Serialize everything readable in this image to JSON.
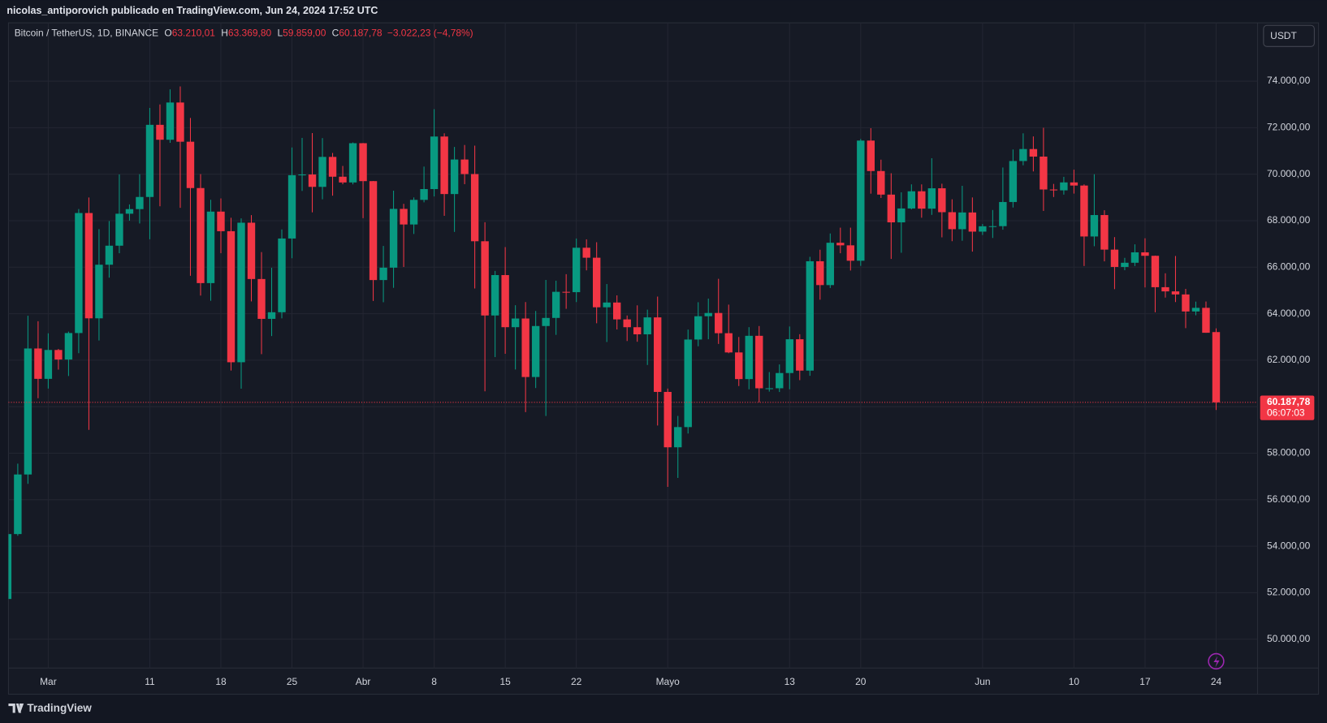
{
  "header": {
    "byline": "nicolas_antiporovich publicado en TradingView.com, Jun 24, 2024 17:52 UTC"
  },
  "legend": {
    "symbol": "Bitcoin / TetherUS, 1D, BINANCE",
    "fields": [
      {
        "key": "O",
        "text": "63.210,01"
      },
      {
        "key": "H",
        "text": "63.369,80"
      },
      {
        "key": "L",
        "text": "59.859,00"
      },
      {
        "key": "C",
        "text": "60.187,78"
      }
    ],
    "change": "−3.022,23 (−4,78%)"
  },
  "currency": "USDT",
  "footer": {
    "brand": "TradingView"
  },
  "chart_data": {
    "type": "candlestick",
    "x": [
      "2024-02-26",
      "2024-02-27",
      "2024-02-28",
      "2024-02-29",
      "2024-03-01",
      "2024-03-02",
      "2024-03-03",
      "2024-03-04",
      "2024-03-05",
      "2024-03-06",
      "2024-03-07",
      "2024-03-08",
      "2024-03-09",
      "2024-03-10",
      "2024-03-11",
      "2024-03-12",
      "2024-03-13",
      "2024-03-14",
      "2024-03-15",
      "2024-03-16",
      "2024-03-17",
      "2024-03-18",
      "2024-03-19",
      "2024-03-20",
      "2024-03-21",
      "2024-03-22",
      "2024-03-23",
      "2024-03-24",
      "2024-03-25",
      "2024-03-26",
      "2024-03-27",
      "2024-03-28",
      "2024-03-29",
      "2024-03-30",
      "2024-03-31",
      "2024-04-01",
      "2024-04-02",
      "2024-04-03",
      "2024-04-04",
      "2024-04-05",
      "2024-04-06",
      "2024-04-07",
      "2024-04-08",
      "2024-04-09",
      "2024-04-10",
      "2024-04-11",
      "2024-04-12",
      "2024-04-13",
      "2024-04-14",
      "2024-04-15",
      "2024-04-16",
      "2024-04-17",
      "2024-04-18",
      "2024-04-19",
      "2024-04-20",
      "2024-04-21",
      "2024-04-22",
      "2024-04-23",
      "2024-04-24",
      "2024-04-25",
      "2024-04-26",
      "2024-04-27",
      "2024-04-28",
      "2024-04-29",
      "2024-04-30",
      "2024-05-01",
      "2024-05-02",
      "2024-05-03",
      "2024-05-04",
      "2024-05-05",
      "2024-05-06",
      "2024-05-07",
      "2024-05-08",
      "2024-05-09",
      "2024-05-10",
      "2024-05-11",
      "2024-05-12",
      "2024-05-13",
      "2024-05-14",
      "2024-05-15",
      "2024-05-16",
      "2024-05-17",
      "2024-05-18",
      "2024-05-19",
      "2024-05-20",
      "2024-05-21",
      "2024-05-22",
      "2024-05-23",
      "2024-05-24",
      "2024-05-25",
      "2024-05-26",
      "2024-05-27",
      "2024-05-28",
      "2024-05-29",
      "2024-05-30",
      "2024-05-31",
      "2024-06-01",
      "2024-06-02",
      "2024-06-03",
      "2024-06-04",
      "2024-06-05",
      "2024-06-06",
      "2024-06-07",
      "2024-06-08",
      "2024-06-09",
      "2024-06-10",
      "2024-06-11",
      "2024-06-12",
      "2024-06-13",
      "2024-06-14",
      "2024-06-15",
      "2024-06-16",
      "2024-06-17",
      "2024-06-18",
      "2024-06-19",
      "2024-06-20",
      "2024-06-21",
      "2024-06-22",
      "2024-06-23",
      "2024-06-24"
    ],
    "open": [
      51730,
      54522,
      57085,
      62504,
      61198,
      62440,
      62029,
      63168,
      68330,
      63801,
      66106,
      66925,
      68300,
      68498,
      69020,
      72123,
      71482,
      73083,
      71397,
      69404,
      65316,
      68391,
      67548,
      61912,
      67914,
      65491,
      63778,
      64062,
      67234,
      69958,
      69987,
      69455,
      70744,
      69892,
      69645,
      71333,
      69702,
      65447,
      65980,
      68508,
      67837,
      68896,
      69360,
      71620,
      69146,
      70631,
      70006,
      67116,
      63924,
      65661,
      63420,
      63793,
      61277,
      63470,
      63818,
      64941,
      64926,
      66837,
      66408,
      64276,
      64481,
      63755,
      63419,
      63113,
      63841,
      60636,
      58254,
      59123,
      62889,
      63891,
      64031,
      63161,
      62334,
      61187,
      63049,
      60792,
      60793,
      61448,
      62901,
      61552,
      66256,
      65231,
      67051,
      66940,
      66278,
      71446,
      70136,
      69122,
      67929,
      68526,
      69265,
      68518,
      69394,
      68366,
      67635,
      68354,
      67530,
      67760,
      67765,
      68804,
      70567,
      71082,
      70757,
      69342,
      69305,
      69647,
      69512,
      67321,
      68243,
      66756,
      66011,
      66191,
      66639,
      66490,
      65140,
      64960,
      64828,
      64096,
      64252,
      63210.01
    ],
    "high": [
      54938,
      57550,
      63913,
      63676,
      63155,
      62486,
      63230,
      68500,
      69000,
      67637,
      67985,
      69990,
      68700,
      70000,
      72850,
      73000,
      73650,
      73777,
      72420,
      70000,
      68900,
      68958,
      68124,
      68100,
      68240,
      66650,
      65976,
      67624,
      71150,
      71561,
      71769,
      71552,
      70913,
      70355,
      71366,
      71342,
      69708,
      66914,
      69291,
      68725,
      69000,
      70327,
      72797,
      71758,
      71172,
      71256,
      71227,
      67932,
      65840,
      66867,
      64365,
      64499,
      64117,
      65450,
      65419,
      65700,
      67233,
      67199,
      67075,
      65275,
      64789,
      63923,
      64359,
      64174,
      64734,
      60780,
      59602,
      63320,
      64494,
      64650,
      65500,
      64390,
      62999,
      63421,
      63469,
      61490,
      61818,
      63450,
      63118,
      66444,
      66752,
      67451,
      67700,
      67700,
      71515,
      71979,
      70625,
      70041,
      69220,
      69563,
      69562,
      70687,
      69590,
      68920,
      69500,
      69000,
      67857,
      68460,
      70288,
      71063,
      71758,
      71625,
      71997,
      69582,
      69887,
      70195,
      69562,
      69999,
      68449,
      67294,
      66402,
      66984,
      67244,
      66500,
      65738,
      66482,
      65067,
      64520,
      64524,
      63369.8
    ],
    "low": [
      50901,
      54450,
      56683,
      60364,
      60778,
      61593,
      61321,
      62300,
      59005,
      62848,
      65551,
      66600,
      68000,
      67880,
      67200,
      68620,
      71350,
      68555,
      65630,
      64780,
      64556,
      66601,
      61555,
      60775,
      64529,
      62260,
      63038,
      63800,
      66385,
      69280,
      68360,
      68920,
      69076,
      69567,
      69562,
      68110,
      64550,
      64493,
      65113,
      66011,
      67429,
      68790,
      69043,
      68210,
      67518,
      69571,
      65086,
      60660,
      62134,
      62274,
      61600,
      59768,
      60803,
      59600,
      63090,
      64210,
      64500,
      65864,
      63589,
      62783,
      63322,
      62824,
      62793,
      61795,
      59191,
      56552,
      56937,
      58848,
      62599,
      62900,
      62700,
      62300,
      60888,
      60749,
      60187,
      60650,
      60632,
      60750,
      61142,
      61330,
      64602,
      65106,
      66600,
      65857,
      66060,
      69162,
      68977,
      66356,
      66622,
      68486,
      68128,
      68250,
      67284,
      67118,
      67137,
      66670,
      67386,
      67257,
      67612,
      68567,
      70383,
      70119,
      68420,
      69018,
      69121,
      69165,
      66051,
      66902,
      66251,
      65056,
      65871,
      66050,
      65130,
      64060,
      64693,
      64500,
      63379,
      63932,
      63178,
      59859
    ],
    "close": [
      54522,
      57085,
      62504,
      61198,
      62440,
      62029,
      63168,
      68330,
      63801,
      66106,
      66925,
      68300,
      68498,
      69020,
      72123,
      71482,
      73083,
      71397,
      69404,
      65316,
      68391,
      67548,
      61912,
      67914,
      65491,
      63778,
      64062,
      67234,
      69958,
      69987,
      69455,
      70744,
      69892,
      69645,
      71333,
      69702,
      65447,
      65980,
      68508,
      67837,
      68896,
      69360,
      71620,
      69146,
      70631,
      70006,
      67116,
      63924,
      65661,
      63420,
      63793,
      61277,
      63470,
      63818,
      64941,
      64926,
      66837,
      66408,
      64276,
      64481,
      63755,
      63419,
      63113,
      63841,
      60636,
      58254,
      59123,
      62889,
      63891,
      64031,
      63161,
      62334,
      61187,
      63049,
      60792,
      60793,
      61448,
      62901,
      61552,
      66256,
      65231,
      67051,
      66940,
      66278,
      71446,
      70136,
      69122,
      67929,
      68526,
      69265,
      68518,
      69394,
      68366,
      67635,
      68354,
      67530,
      67760,
      67765,
      68804,
      70567,
      71082,
      70757,
      69342,
      69305,
      69647,
      69512,
      67321,
      68243,
      66756,
      66011,
      66191,
      66639,
      66490,
      65140,
      64960,
      64828,
      64096,
      64252,
      63180,
      60187.78
    ],
    "up_color": "#089981",
    "down_color": "#f23645",
    "xlim": [
      "2024-02-26T02:00Z",
      "2024-06-28T02:00Z"
    ],
    "xticks": [
      {
        "value": "2024-03-01",
        "label": "Mar"
      },
      {
        "value": "2024-03-11",
        "label": "11"
      },
      {
        "value": "2024-03-18",
        "label": "18"
      },
      {
        "value": "2024-03-25",
        "label": "25"
      },
      {
        "value": "2024-04-01",
        "label": "Abr"
      },
      {
        "value": "2024-04-08",
        "label": "8"
      },
      {
        "value": "2024-04-15",
        "label": "15"
      },
      {
        "value": "2024-04-22",
        "label": "22"
      },
      {
        "value": "2024-05-01",
        "label": "Mayo"
      },
      {
        "value": "2024-05-13",
        "label": "13"
      },
      {
        "value": "2024-05-20",
        "label": "20"
      },
      {
        "value": "2024-06-01",
        "label": "Jun"
      },
      {
        "value": "2024-06-10",
        "label": "10"
      },
      {
        "value": "2024-06-17",
        "label": "17"
      },
      {
        "value": "2024-06-24",
        "label": "24"
      }
    ],
    "ylim": [
      48760,
      76510
    ],
    "yticks": [
      {
        "value": 50000,
        "label": "50.000,00"
      },
      {
        "value": 52000,
        "label": "52.000,00"
      },
      {
        "value": 54000,
        "label": "54.000,00"
      },
      {
        "value": 56000,
        "label": "56.000,00"
      },
      {
        "value": 58000,
        "label": "58.000,00"
      },
      {
        "value": 60000,
        "label": "60.000,00"
      },
      {
        "value": 62000,
        "label": "62.000,00"
      },
      {
        "value": 64000,
        "label": "64.000,00"
      },
      {
        "value": 66000,
        "label": "66.000,00"
      },
      {
        "value": 68000,
        "label": "68.000,00"
      },
      {
        "value": 70000,
        "label": "70.000,00"
      },
      {
        "value": 72000,
        "label": "72.000,00"
      },
      {
        "value": 74000,
        "label": "74.000,00"
      }
    ],
    "grid": true,
    "last_price": {
      "value": 60187.78,
      "label": "60.187,78"
    },
    "countdown": "06:07:03"
  }
}
